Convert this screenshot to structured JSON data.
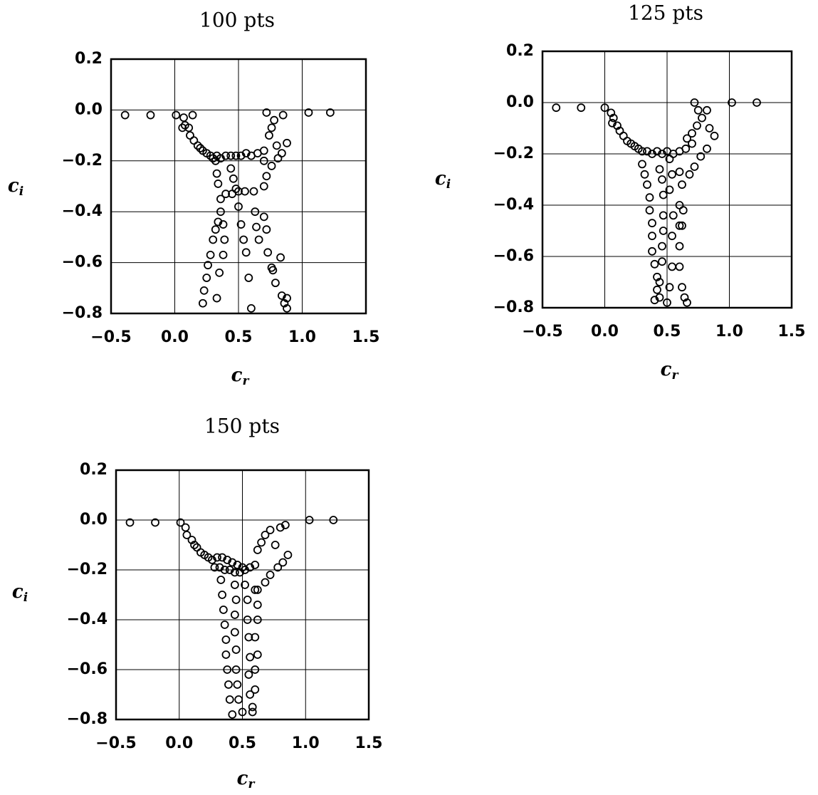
{
  "chart_data": [
    {
      "type": "scatter",
      "title": "100 pts",
      "xlabel": "c",
      "xlabel_sub": "r",
      "ylabel": "c",
      "ylabel_sub": "i",
      "color": "#000000",
      "grid": true,
      "xlim": [
        -0.5,
        1.5
      ],
      "ylim": [
        -0.8,
        0.2
      ],
      "xticks": [
        {
          "value": -0.5,
          "label": "−0.5"
        },
        {
          "value": 0,
          "label": "0.0"
        },
        {
          "value": 0.5,
          "label": "0.5"
        },
        {
          "value": 1,
          "label": "1.0"
        },
        {
          "value": 1.5,
          "label": "1.5"
        }
      ],
      "yticks": [
        {
          "value": 0.2,
          "label": "0.2"
        },
        {
          "value": 0,
          "label": "0.0"
        },
        {
          "value": -0.2,
          "label": "−0.2"
        },
        {
          "value": -0.4,
          "label": "−0.4"
        },
        {
          "value": -0.6,
          "label": "−0.6"
        },
        {
          "value": -0.8,
          "label": "−0.8"
        }
      ],
      "x": [
        -0.39,
        -0.19,
        0.01,
        1.05,
        1.22,
        0.07,
        0.08,
        0.06,
        0.11,
        0.12,
        0.14,
        0.15,
        0.18,
        0.2,
        0.22,
        0.25,
        0.28,
        0.3,
        0.33,
        0.36,
        0.4,
        0.44,
        0.48,
        0.52,
        0.56,
        0.6,
        0.65,
        0.7,
        0.72,
        0.74,
        0.76,
        0.78,
        0.8,
        0.85,
        0.88,
        0.84,
        0.81,
        0.7,
        0.76,
        0.72,
        0.7,
        0.32,
        0.33,
        0.34,
        0.36,
        0.36,
        0.34,
        0.32,
        0.3,
        0.28,
        0.26,
        0.25,
        0.23,
        0.22,
        0.4,
        0.45,
        0.5,
        0.55,
        0.38,
        0.39,
        0.38,
        0.35,
        0.33,
        0.44,
        0.46,
        0.48,
        0.5,
        0.52,
        0.54,
        0.56,
        0.58,
        0.6,
        0.62,
        0.63,
        0.64,
        0.66,
        0.7,
        0.72,
        0.73,
        0.76,
        0.77,
        0.79,
        0.84,
        0.86,
        0.88,
        0.88,
        0.83
      ],
      "values": [
        -0.02,
        -0.02,
        -0.02,
        -0.01,
        -0.01,
        -0.03,
        -0.06,
        -0.07,
        -0.07,
        -0.1,
        -0.02,
        -0.12,
        -0.14,
        -0.15,
        -0.16,
        -0.17,
        -0.18,
        -0.19,
        -0.18,
        -0.19,
        -0.18,
        -0.18,
        -0.18,
        -0.18,
        -0.17,
        -0.18,
        -0.17,
        -0.16,
        -0.01,
        -0.1,
        -0.07,
        -0.04,
        -0.14,
        -0.02,
        -0.13,
        -0.17,
        -0.19,
        -0.2,
        -0.22,
        -0.26,
        -0.3,
        -0.2,
        -0.25,
        -0.29,
        -0.35,
        -0.4,
        -0.44,
        -0.47,
        -0.51,
        -0.57,
        -0.61,
        -0.66,
        -0.71,
        -0.76,
        -0.33,
        -0.33,
        -0.32,
        -0.32,
        -0.45,
        -0.51,
        -0.57,
        -0.64,
        -0.74,
        -0.23,
        -0.27,
        -0.31,
        -0.38,
        -0.45,
        -0.51,
        -0.56,
        -0.66,
        -0.78,
        -0.32,
        -0.4,
        -0.46,
        -0.51,
        -0.42,
        -0.47,
        -0.56,
        -0.62,
        -0.63,
        -0.68,
        -0.73,
        -0.76,
        -0.78,
        -0.74,
        -0.58
      ]
    },
    {
      "type": "scatter",
      "title": "125 pts",
      "xlabel": "c",
      "xlabel_sub": "r",
      "ylabel": "c",
      "ylabel_sub": "i",
      "color": "#000000",
      "grid": true,
      "xlim": [
        -0.5,
        1.5
      ],
      "ylim": [
        -0.8,
        0.2
      ],
      "xticks": [
        {
          "value": -0.5,
          "label": "−0.5"
        },
        {
          "value": 0,
          "label": "0.0"
        },
        {
          "value": 0.5,
          "label": "0.5"
        },
        {
          "value": 1,
          "label": "1.0"
        },
        {
          "value": 1.5,
          "label": "1.5"
        }
      ],
      "yticks": [
        {
          "value": 0.2,
          "label": "0.2"
        },
        {
          "value": 0,
          "label": "0.0"
        },
        {
          "value": -0.2,
          "label": "−0.2"
        },
        {
          "value": -0.4,
          "label": "−0.4"
        },
        {
          "value": -0.6,
          "label": "−0.6"
        },
        {
          "value": -0.8,
          "label": "−0.8"
        }
      ],
      "x": [
        -0.39,
        -0.19,
        0.0,
        1.02,
        1.22,
        0.05,
        0.07,
        0.06,
        0.1,
        0.12,
        0.15,
        0.18,
        0.21,
        0.24,
        0.27,
        0.3,
        0.34,
        0.38,
        0.42,
        0.46,
        0.5,
        0.55,
        0.6,
        0.65,
        0.7,
        0.72,
        0.75,
        0.78,
        0.74,
        0.7,
        0.66,
        0.82,
        0.84,
        0.88,
        0.82,
        0.77,
        0.72,
        0.68,
        0.3,
        0.32,
        0.34,
        0.36,
        0.36,
        0.38,
        0.38,
        0.38,
        0.4,
        0.42,
        0.42,
        0.4,
        0.44,
        0.46,
        0.47,
        0.47,
        0.47,
        0.46,
        0.46,
        0.44,
        0.44,
        0.52,
        0.54,
        0.52,
        0.55,
        0.54,
        0.54,
        0.52,
        0.5,
        0.6,
        0.62,
        0.6,
        0.6,
        0.62,
        0.6,
        0.6,
        0.62,
        0.64,
        0.66,
        0.63
      ],
      "values": [
        -0.02,
        -0.02,
        -0.02,
        0.0,
        0.0,
        -0.04,
        -0.06,
        -0.08,
        -0.09,
        -0.11,
        -0.13,
        -0.15,
        -0.16,
        -0.17,
        -0.18,
        -0.19,
        -0.19,
        -0.2,
        -0.19,
        -0.2,
        -0.19,
        -0.2,
        -0.19,
        -0.18,
        -0.16,
        0.0,
        -0.03,
        -0.06,
        -0.09,
        -0.12,
        -0.14,
        -0.03,
        -0.1,
        -0.13,
        -0.18,
        -0.21,
        -0.25,
        -0.28,
        -0.24,
        -0.28,
        -0.32,
        -0.37,
        -0.42,
        -0.47,
        -0.52,
        -0.58,
        -0.63,
        -0.68,
        -0.73,
        -0.77,
        -0.26,
        -0.3,
        -0.36,
        -0.44,
        -0.5,
        -0.56,
        -0.62,
        -0.7,
        -0.76,
        -0.22,
        -0.28,
        -0.34,
        -0.44,
        -0.52,
        -0.64,
        -0.72,
        -0.78,
        -0.27,
        -0.32,
        -0.4,
        -0.48,
        -0.48,
        -0.56,
        -0.64,
        -0.72,
        -0.76,
        -0.78,
        -0.42
      ]
    },
    {
      "type": "scatter",
      "title": "150 pts",
      "xlabel": "c",
      "xlabel_sub": "r",
      "ylabel": "c",
      "ylabel_sub": "i",
      "color": "#000000",
      "grid": true,
      "xlim": [
        -0.5,
        1.5
      ],
      "ylim": [
        -0.8,
        0.2
      ],
      "xticks": [
        {
          "value": -0.5,
          "label": "−0.5"
        },
        {
          "value": 0,
          "label": "0.0"
        },
        {
          "value": 0.5,
          "label": "0.5"
        },
        {
          "value": 1,
          "label": "1.0"
        },
        {
          "value": 1.5,
          "label": "1.5"
        }
      ],
      "yticks": [
        {
          "value": 0.2,
          "label": "0.2"
        },
        {
          "value": 0,
          "label": "0.0"
        },
        {
          "value": -0.2,
          "label": "−0.2"
        },
        {
          "value": -0.4,
          "label": "−0.4"
        },
        {
          "value": -0.6,
          "label": "−0.6"
        },
        {
          "value": -0.8,
          "label": "−0.8"
        }
      ],
      "x": [
        -0.39,
        -0.19,
        0.01,
        1.03,
        1.22,
        0.05,
        0.06,
        0.1,
        0.12,
        0.14,
        0.17,
        0.2,
        0.23,
        0.26,
        0.3,
        0.34,
        0.38,
        0.42,
        0.46,
        0.5,
        0.28,
        0.32,
        0.36,
        0.4,
        0.44,
        0.48,
        0.52,
        0.56,
        0.6,
        0.62,
        0.65,
        0.68,
        0.72,
        0.76,
        0.8,
        0.84,
        0.86,
        0.82,
        0.78,
        0.72,
        0.68,
        0.62,
        0.33,
        0.34,
        0.35,
        0.36,
        0.37,
        0.37,
        0.38,
        0.39,
        0.4,
        0.42,
        0.44,
        0.45,
        0.44,
        0.44,
        0.45,
        0.45,
        0.46,
        0.47,
        0.5,
        0.52,
        0.54,
        0.54,
        0.55,
        0.56,
        0.55,
        0.56,
        0.58,
        0.6,
        0.62,
        0.62,
        0.6,
        0.62,
        0.6,
        0.6,
        0.58
      ],
      "values": [
        -0.01,
        -0.01,
        -0.01,
        0.0,
        0.0,
        -0.03,
        -0.06,
        -0.08,
        -0.1,
        -0.11,
        -0.13,
        -0.14,
        -0.15,
        -0.16,
        -0.15,
        -0.15,
        -0.16,
        -0.17,
        -0.18,
        -0.19,
        -0.19,
        -0.19,
        -0.2,
        -0.2,
        -0.21,
        -0.21,
        -0.2,
        -0.19,
        -0.18,
        -0.12,
        -0.09,
        -0.06,
        -0.04,
        -0.1,
        -0.03,
        -0.02,
        -0.14,
        -0.17,
        -0.19,
        -0.22,
        -0.25,
        -0.28,
        -0.24,
        -0.3,
        -0.36,
        -0.42,
        -0.48,
        -0.54,
        -0.6,
        -0.66,
        -0.72,
        -0.78,
        -0.26,
        -0.32,
        -0.38,
        -0.45,
        -0.52,
        -0.6,
        -0.66,
        -0.72,
        -0.77,
        -0.26,
        -0.32,
        -0.4,
        -0.47,
        -0.55,
        -0.62,
        -0.7,
        -0.77,
        -0.28,
        -0.34,
        -0.4,
        -0.47,
        -0.54,
        -0.6,
        -0.68,
        -0.75
      ]
    }
  ]
}
